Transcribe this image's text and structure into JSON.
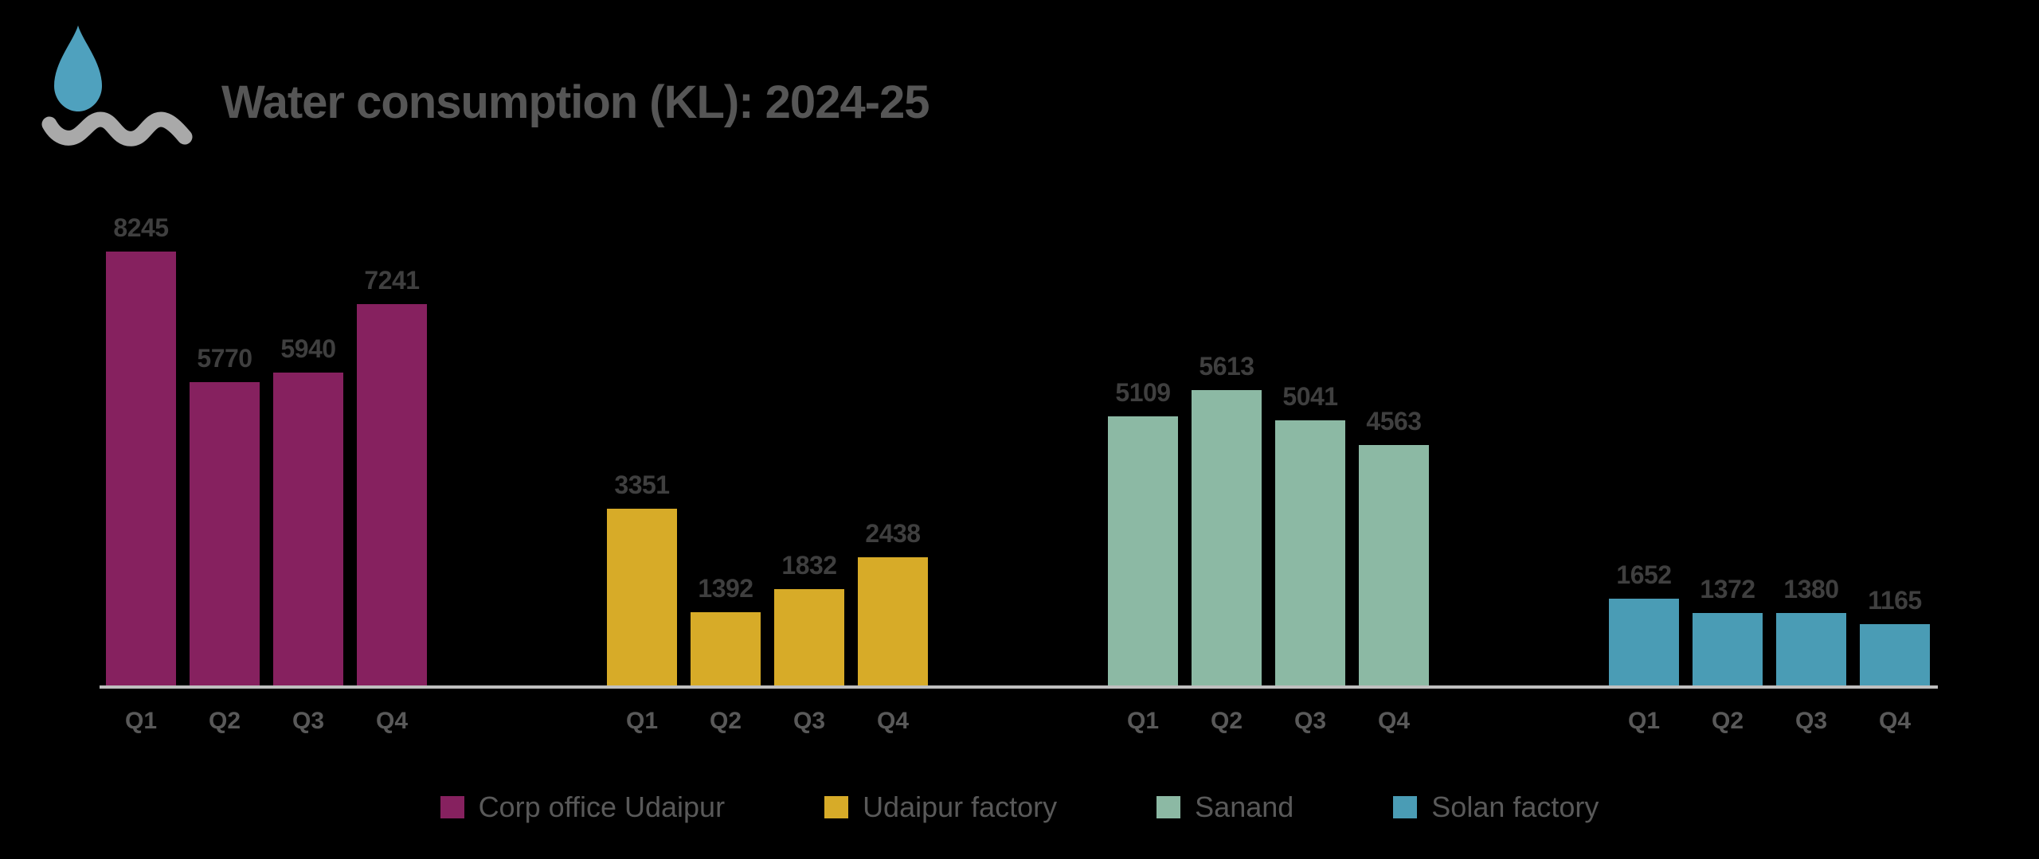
{
  "title": "Water consumption (KL): 2024-25",
  "icon": {
    "name": "water-drop-over-wave",
    "drop_color": "#4FA1BE",
    "wave_color": "#A9A9A9"
  },
  "axis_color": "#BFBFBF",
  "label_colors": {
    "title": "#565656",
    "value_labels": "#3F3F3F",
    "tick_labels": "#595959",
    "legend_labels": "#595959"
  },
  "chart_data": {
    "type": "bar",
    "title": "Water consumption (KL): 2024-25",
    "categories": [
      "Q1",
      "Q2",
      "Q3",
      "Q4"
    ],
    "series": [
      {
        "name": "Corp office Udaipur",
        "color": "#86215F",
        "values": [
          8245,
          5770,
          5940,
          7241
        ]
      },
      {
        "name": "Udaipur factory",
        "color": "#D7AB28",
        "values": [
          3351,
          1392,
          1832,
          2438
        ]
      },
      {
        "name": "Sanand",
        "color": "#8CB9A4",
        "values": [
          5109,
          5613,
          5041,
          4563
        ]
      },
      {
        "name": "Solan factory",
        "color": "#4A9CB5",
        "values": [
          1652,
          1372,
          1380,
          1165
        ]
      }
    ],
    "ylim": [
      0,
      8245
    ],
    "grid": false,
    "y_axis_visible": false,
    "data_labels": true,
    "legend_position": "bottom"
  }
}
